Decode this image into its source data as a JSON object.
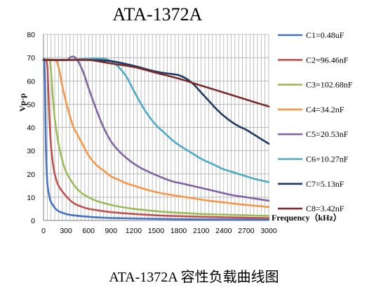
{
  "caption": "ATA-1372A 容性负载曲线图",
  "chart_data": {
    "type": "line",
    "title": "ATA-1372A",
    "xlabel": "Frequency（kHz）",
    "ylabel": "Vp-p",
    "xlim": [
      0,
      3000
    ],
    "ylim": [
      0,
      80
    ],
    "x_ticks": [
      0,
      300,
      600,
      900,
      1200,
      1500,
      1800,
      2100,
      2400,
      2700,
      3000
    ],
    "y_ticks": [
      0,
      10,
      20,
      30,
      40,
      50,
      60,
      70,
      80
    ],
    "x_ticks_text": [
      "0",
      "300",
      "600",
      "900",
      "1200",
      "1500",
      "1800",
      "2100",
      "2400",
      "2700",
      "3000"
    ],
    "y_ticks_text": [
      "0",
      "10",
      "20",
      "30",
      "40",
      "50",
      "60",
      "70",
      "80"
    ],
    "grid": true,
    "legend_position": "right",
    "series": [
      {
        "name": "C1=0.48uF",
        "color": "#4472C4",
        "x": [
          0,
          10,
          20,
          30,
          50,
          80,
          100,
          150,
          200,
          300,
          400,
          600,
          800,
          1000,
          1500,
          2000,
          2500,
          3000
        ],
        "y": [
          69,
          69,
          60,
          35,
          17,
          10,
          8,
          5.5,
          4,
          2.8,
          2.2,
          1.6,
          1.2,
          1,
          0.7,
          0.5,
          0.4,
          0.3
        ]
      },
      {
        "name": "C2=96.46nF",
        "color": "#C0504D",
        "x": [
          0,
          30,
          50,
          60,
          80,
          100,
          120,
          150,
          200,
          300,
          400,
          500,
          600,
          800,
          1000,
          1500,
          2000,
          2500,
          3000
        ],
        "y": [
          69,
          69,
          67,
          60,
          43,
          32,
          26,
          20,
          15,
          10.5,
          7.5,
          6,
          5,
          4,
          3.3,
          2.2,
          1.7,
          1.3,
          1
        ]
      },
      {
        "name": "C3=102.68nF",
        "color": "#9BBB59",
        "x": [
          0,
          80,
          100,
          120,
          150,
          200,
          250,
          300,
          400,
          500,
          600,
          700,
          800,
          900,
          1000,
          1200,
          1500,
          1800,
          2100,
          2400,
          2700,
          3000
        ],
        "y": [
          69,
          69,
          64,
          55,
          44,
          33,
          26,
          21,
          15.5,
          12,
          10,
          8.5,
          7.5,
          6.7,
          6,
          5,
          4,
          3.3,
          2.8,
          2.5,
          2.2,
          2
        ]
      },
      {
        "name": "C4=34.2nF",
        "color": "#F79646",
        "x": [
          0,
          150,
          200,
          250,
          300,
          350,
          400,
          450,
          500,
          600,
          700,
          800,
          900,
          1000,
          1100,
          1200,
          1400,
          1600,
          1800,
          2000,
          2200,
          2400,
          2600,
          2800,
          3000
        ],
        "y": [
          69,
          69,
          66,
          58,
          51,
          45,
          40,
          37,
          34,
          28,
          24,
          21.5,
          19,
          17.5,
          16,
          15,
          13,
          11.5,
          10.5,
          9.5,
          8.5,
          7.8,
          7,
          6.4,
          5.8
        ]
      },
      {
        "name": "C5=20.53nF",
        "color": "#8064A2",
        "x": [
          0,
          300,
          350,
          400,
          450,
          500,
          550,
          600,
          700,
          800,
          900,
          1000,
          1100,
          1200,
          1300,
          1500,
          1700,
          1900,
          2100,
          2300,
          2500,
          2700,
          2900,
          3000
        ],
        "y": [
          69,
          69,
          70,
          70.5,
          69,
          66,
          62,
          57,
          48,
          40,
          34,
          30,
          27,
          24.5,
          22.5,
          19.5,
          17,
          15.5,
          14,
          12.5,
          11,
          10,
          9,
          8.5
        ]
      },
      {
        "name": "C6=10.27nF",
        "color": "#4BACC6",
        "x": [
          0,
          300,
          600,
          800,
          900,
          1000,
          1100,
          1200,
          1300,
          1400,
          1500,
          1600,
          1700,
          1800,
          1900,
          2000,
          2100,
          2200,
          2300,
          2400,
          2500,
          2600,
          2700,
          2800,
          2900,
          3000
        ],
        "y": [
          69,
          69,
          69.5,
          69.5,
          68.5,
          66,
          62,
          56,
          50,
          45,
          41,
          38,
          35,
          32.5,
          30.5,
          28.5,
          26.5,
          25,
          23.5,
          22,
          21,
          20,
          19,
          18,
          17.2,
          16.5
        ]
      },
      {
        "name": "C7=5.13nF",
        "color": "#1F3864",
        "x": [
          0,
          600,
          900,
          1200,
          1500,
          1700,
          1800,
          1900,
          2000,
          2100,
          2200,
          2300,
          2400,
          2500,
          2600,
          2700,
          2800,
          2900,
          3000
        ],
        "y": [
          69,
          69,
          68.5,
          66.5,
          64,
          63,
          62.5,
          61,
          58.5,
          55,
          51.5,
          48,
          45,
          42.5,
          40.5,
          39,
          37,
          35,
          33
        ]
      },
      {
        "name": "C8=3.42nF",
        "color": "#7B2C2C",
        "x": [
          0,
          300,
          600,
          900,
          1200,
          1500,
          1800,
          2100,
          2400,
          2700,
          3000
        ],
        "y": [
          69,
          69,
          69,
          67.5,
          66,
          63.5,
          61,
          58,
          55,
          52,
          49
        ]
      }
    ]
  }
}
